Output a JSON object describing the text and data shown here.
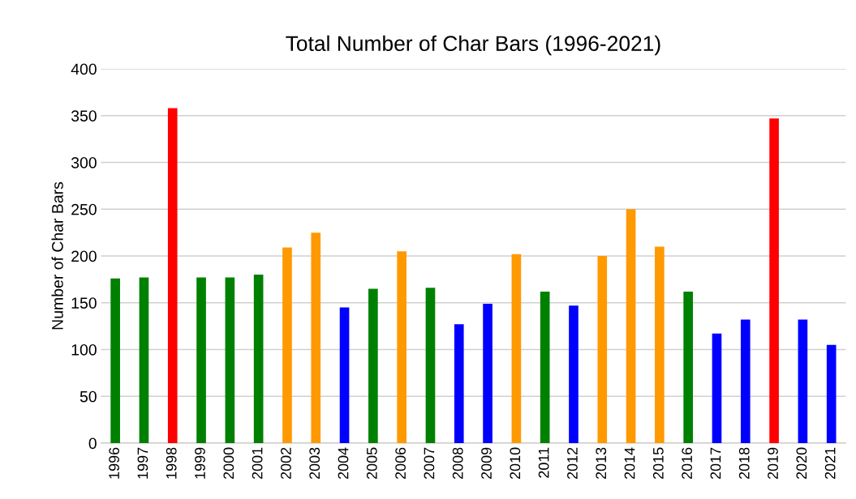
{
  "chart_data": {
    "type": "bar",
    "title": "Total Number of Char Bars (1996-2021)",
    "ylabel": "Number of Char Bars",
    "categories": [
      "1996",
      "1997",
      "1998",
      "1999",
      "2000",
      "2001",
      "2002",
      "2003",
      "2004",
      "2005",
      "2006",
      "2007",
      "2008",
      "2009",
      "2010",
      "2011",
      "2012",
      "2013",
      "2014",
      "2015",
      "2016",
      "2017",
      "2018",
      "2019",
      "2020",
      "2021"
    ],
    "values": [
      176,
      177,
      358,
      177,
      177,
      180,
      209,
      225,
      145,
      165,
      205,
      166,
      127,
      149,
      202,
      162,
      147,
      200,
      250,
      210,
      162,
      117,
      132,
      347,
      132,
      105
    ],
    "colors": [
      "#008000",
      "#008000",
      "#ff0000",
      "#008000",
      "#008000",
      "#008000",
      "#ff9900",
      "#ff9900",
      "#0000ff",
      "#008000",
      "#ff9900",
      "#008000",
      "#0000ff",
      "#0000ff",
      "#ff9900",
      "#008000",
      "#0000ff",
      "#ff9900",
      "#ff9900",
      "#ff9900",
      "#008000",
      "#0000ff",
      "#0000ff",
      "#ff0000",
      "#0000ff",
      "#0000ff"
    ],
    "ylim": [
      0,
      400
    ],
    "yticks": [
      0,
      50,
      100,
      150,
      200,
      250,
      300,
      350,
      400
    ],
    "grid": "y",
    "legend": false
  }
}
